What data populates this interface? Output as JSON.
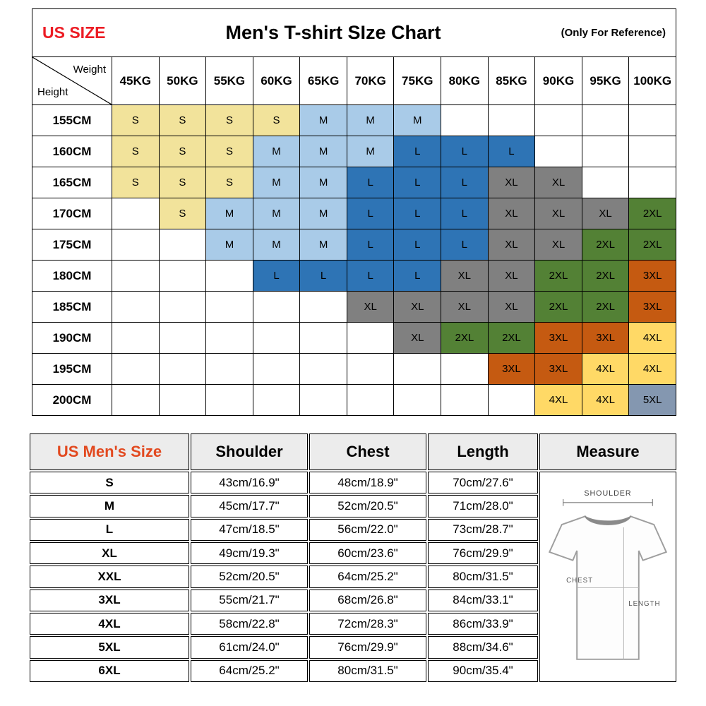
{
  "chart_data": [
    {
      "type": "table",
      "name": "height-weight-size-matrix",
      "us_size_label": "US SIZE",
      "title": "Men's T-shirt SIze Chart",
      "note": "(Only For Reference)",
      "axis_x_label": "Weight",
      "axis_y_label": "Height",
      "columns": [
        "45KG",
        "50KG",
        "55KG",
        "60KG",
        "65KG",
        "70KG",
        "75KG",
        "80KG",
        "85KG",
        "90KG",
        "95KG",
        "100KG"
      ],
      "size_colors": {
        "S": "#f2e39b",
        "M": "#a9cbe8",
        "L": "#2e74b5",
        "XL": "#808080",
        "2XL": "#538135",
        "3XL": "#c55a11",
        "4XL": "#ffd966",
        "5XL": "#8497b0"
      },
      "rows": [
        {
          "height": "155CM",
          "cells": [
            "S",
            "S",
            "S",
            "S",
            "M",
            "M",
            "M",
            "",
            "",
            "",
            "",
            ""
          ]
        },
        {
          "height": "160CM",
          "cells": [
            "S",
            "S",
            "S",
            "M",
            "M",
            "M",
            "L",
            "L",
            "L",
            "",
            "",
            ""
          ]
        },
        {
          "height": "165CM",
          "cells": [
            "S",
            "S",
            "S",
            "M",
            "M",
            "L",
            "L",
            "L",
            "XL",
            "XL",
            "",
            ""
          ]
        },
        {
          "height": "170CM",
          "cells": [
            "",
            "S",
            "M",
            "M",
            "M",
            "L",
            "L",
            "L",
            "XL",
            "XL",
            "XL",
            "2XL"
          ]
        },
        {
          "height": "175CM",
          "cells": [
            "",
            "",
            "M",
            "M",
            "M",
            "L",
            "L",
            "L",
            "XL",
            "XL",
            "2XL",
            "2XL"
          ]
        },
        {
          "height": "180CM",
          "cells": [
            "",
            "",
            "",
            "L",
            "L",
            "L",
            "L",
            "XL",
            "XL",
            "2XL",
            "2XL",
            "3XL"
          ]
        },
        {
          "height": "185CM",
          "cells": [
            "",
            "",
            "",
            "",
            "",
            "XL",
            "XL",
            "XL",
            "XL",
            "2XL",
            "2XL",
            "3XL"
          ]
        },
        {
          "height": "190CM",
          "cells": [
            "",
            "",
            "",
            "",
            "",
            "",
            "XL",
            "2XL",
            "2XL",
            "3XL",
            "3XL",
            "4XL"
          ]
        },
        {
          "height": "195CM",
          "cells": [
            "",
            "",
            "",
            "",
            "",
            "",
            "",
            "",
            "3XL",
            "3XL",
            "4XL",
            "4XL"
          ]
        },
        {
          "height": "200CM",
          "cells": [
            "",
            "",
            "",
            "",
            "",
            "",
            "",
            "",
            "",
            "4XL",
            "4XL",
            "5XL"
          ]
        }
      ]
    },
    {
      "type": "table",
      "name": "measurement-table",
      "headers": [
        "US Men's Size",
        "Shoulder",
        "Chest",
        "Length",
        "Measure"
      ],
      "header_accent_color": "#e2491f",
      "rows": [
        {
          "size": "S",
          "shoulder": "43cm/16.9\"",
          "chest": "48cm/18.9\"",
          "length": "70cm/27.6\""
        },
        {
          "size": "M",
          "shoulder": "45cm/17.7\"",
          "chest": "52cm/20.5\"",
          "length": "71cm/28.0\""
        },
        {
          "size": "L",
          "shoulder": "47cm/18.5\"",
          "chest": "56cm/22.0\"",
          "length": "73cm/28.7\""
        },
        {
          "size": "XL",
          "shoulder": "49cm/19.3\"",
          "chest": "60cm/23.6\"",
          "length": "76cm/29.9\""
        },
        {
          "size": "XXL",
          "shoulder": "52cm/20.5\"",
          "chest": "64cm/25.2\"",
          "length": "80cm/31.5\""
        },
        {
          "size": "3XL",
          "shoulder": "55cm/21.7\"",
          "chest": "68cm/26.8\"",
          "length": "84cm/33.1\""
        },
        {
          "size": "4XL",
          "shoulder": "58cm/22.8\"",
          "chest": "72cm/28.3\"",
          "length": "86cm/33.9\""
        },
        {
          "size": "5XL",
          "shoulder": "61cm/24.0\"",
          "chest": "76cm/29.9\"",
          "length": "88cm/34.6\""
        },
        {
          "size": "6XL",
          "shoulder": "64cm/25.2\"",
          "chest": "80cm/31.5\"",
          "length": "90cm/35.4\""
        }
      ],
      "measure_labels": {
        "shoulder": "SHOULDER",
        "chest": "CHEST",
        "length": "LENGTH"
      }
    }
  ]
}
